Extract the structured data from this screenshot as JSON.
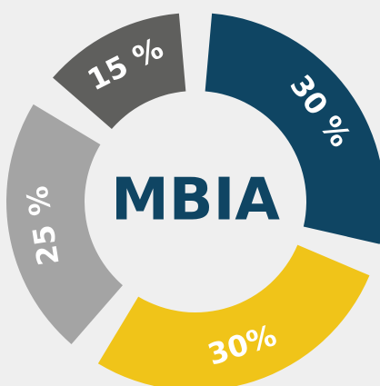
{
  "chart_data": {
    "type": "donut",
    "center_label": "MBIA",
    "categories": [
      null,
      null,
      null,
      null
    ],
    "values": [
      30,
      30,
      25,
      15
    ],
    "value_labels": [
      "30 %",
      "30%",
      "25 %",
      "15 %"
    ],
    "colors": [
      "#0f4563",
      "#f0c419",
      "#a4a4a4",
      "#5f5f5d"
    ]
  }
}
